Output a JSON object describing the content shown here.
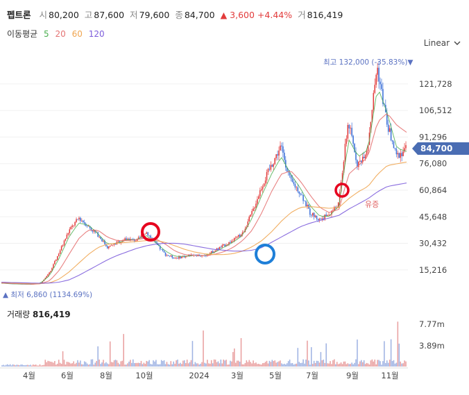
{
  "header": {
    "name": "펩트론",
    "open_label": "시",
    "open": "80,200",
    "high_label": "고",
    "high": "87,600",
    "low_label": "저",
    "low": "79,600",
    "close_label": "종",
    "close": "84,700",
    "change": "▲ 3,600 +4.44%",
    "volume_label": "거",
    "volume": "816,419"
  },
  "ma_legend": {
    "label": "이동평균",
    "items": [
      {
        "period": "5",
        "color": "#4caf50"
      },
      {
        "period": "20",
        "color": "#e57373"
      },
      {
        "period": "60",
        "color": "#f0a550"
      },
      {
        "period": "120",
        "color": "#7c5cdb"
      }
    ]
  },
  "scale_selector": {
    "value": "Linear"
  },
  "annotations": {
    "max": "최고 132,000 (-35.83%)",
    "min": "최저 6,860 (1134.69%)",
    "event": "유증"
  },
  "current_price_tag": "84,700",
  "volume_panel": {
    "label": "거래량",
    "value": "816,419"
  },
  "colors": {
    "up": "#e23b3b",
    "down": "#3a6fd8",
    "highlight_red": "#e6001e",
    "highlight_blue": "#1e7fd8",
    "tag_bg": "#4a6db3"
  },
  "chart_data": {
    "type": "candlestick",
    "y_ticks": [
      121728,
      106512,
      91296,
      76080,
      60864,
      45648,
      30432,
      15216
    ],
    "y_tick_labels": [
      "121,728",
      "106,512",
      "91,296",
      "76,080",
      "60,864",
      "45,648",
      "30,432",
      "15,216"
    ],
    "ylim": [
      0,
      140000
    ],
    "x_tick_labels": [
      "4월",
      "6월",
      "8월",
      "10월",
      "2024",
      "3월",
      "5월",
      "7월",
      "9월",
      "11월"
    ],
    "volume_ticks": [
      "7.77m",
      "3.89m"
    ],
    "volume_max": 7770000,
    "price_path": [
      [
        "2023-03",
        7600
      ],
      [
        "2023-04",
        7300
      ],
      [
        "2023-05",
        7100
      ],
      [
        "2023-06",
        7000
      ],
      [
        "2023-07",
        7400
      ],
      [
        "2023-07b",
        14000
      ],
      [
        "2023-08",
        26000
      ],
      [
        "2023-08b",
        38000
      ],
      [
        "2023-09",
        45000
      ],
      [
        "2023-09b",
        40000
      ],
      [
        "2023-10",
        35000
      ],
      [
        "2023-10b",
        28000
      ],
      [
        "2023-11",
        31000
      ],
      [
        "2023-11b",
        33000
      ],
      [
        "2023-12",
        32000
      ],
      [
        "2023-12b",
        37000
      ],
      [
        "2024-01",
        30000
      ],
      [
        "2024-02",
        24000
      ],
      [
        "2024-02b",
        22000
      ],
      [
        "2024-03",
        23000
      ],
      [
        "2024-03b",
        24000
      ],
      [
        "2024-04",
        23000
      ],
      [
        "2024-04b",
        26000
      ],
      [
        "2024-05",
        29000
      ],
      [
        "2024-05b",
        32000
      ],
      [
        "2024-06",
        36000
      ],
      [
        "2024-06b",
        48000
      ],
      [
        "2024-07",
        63000
      ],
      [
        "2024-07b",
        75000
      ],
      [
        "2024-07c",
        86000
      ],
      [
        "2024-08",
        66000
      ],
      [
        "2024-08b",
        60000
      ],
      [
        "2024-08c",
        48000
      ],
      [
        "2024-09",
        44000
      ],
      [
        "2024-09b",
        47000
      ],
      [
        "2024-10",
        53000
      ],
      [
        "2024-10b",
        100000
      ],
      [
        "2024-10c",
        75000
      ],
      [
        "2024-11",
        85000
      ],
      [
        "2024-11b",
        132000
      ],
      [
        "2024-11c",
        100000
      ],
      [
        "2024-12",
        80000
      ],
      [
        "2024-12b",
        84700
      ]
    ],
    "ma": {
      "5": [
        7600,
        7300,
        7100,
        7000,
        7400,
        12000,
        22000,
        34000,
        42000,
        41000,
        36000,
        30000,
        30500,
        32500,
        32500,
        35000,
        31000,
        26000,
        23000,
        23000,
        23500,
        23500,
        25000,
        28000,
        31000,
        35000,
        45000,
        58000,
        70000,
        80000,
        70000,
        62000,
        52000,
        46000,
        46000,
        52000,
        90000,
        80000,
        84000,
        120000,
        105000,
        85000,
        83000
      ],
      "20": [
        7700,
        7500,
        7300,
        7100,
        7200,
        9000,
        15000,
        24000,
        33000,
        38000,
        38000,
        34000,
        32000,
        32000,
        32500,
        33500,
        33000,
        30000,
        26000,
        24000,
        23500,
        23500,
        24000,
        25500,
        28000,
        32000,
        38000,
        48000,
        60000,
        70000,
        72000,
        66000,
        58000,
        51000,
        48000,
        50000,
        70000,
        75000,
        80000,
        100000,
        105000,
        98000,
        94000
      ],
      "60": [
        8000,
        7800,
        7600,
        7400,
        7300,
        7800,
        10000,
        14000,
        19000,
        24000,
        28000,
        30000,
        30500,
        31000,
        31500,
        32000,
        32000,
        31000,
        29000,
        27000,
        25500,
        24500,
        24000,
        24000,
        24500,
        26000,
        28500,
        32000,
        37000,
        43000,
        48000,
        51000,
        51500,
        51000,
        50500,
        51000,
        56000,
        60000,
        63000,
        70000,
        75000,
        76000,
        77000
      ],
      "120": [
        8200,
        8000,
        7900,
        7700,
        7600,
        7700,
        8200,
        9500,
        12000,
        15000,
        18000,
        21000,
        23500,
        25500,
        27500,
        29000,
        30000,
        30500,
        30500,
        30000,
        29000,
        28000,
        27000,
        26500,
        26000,
        26000,
        26500,
        28000,
        31000,
        34000,
        37000,
        40000,
        42000,
        43500,
        45000,
        46500,
        50000,
        53000,
        56000,
        60000,
        63000,
        64000,
        65000
      ]
    }
  }
}
